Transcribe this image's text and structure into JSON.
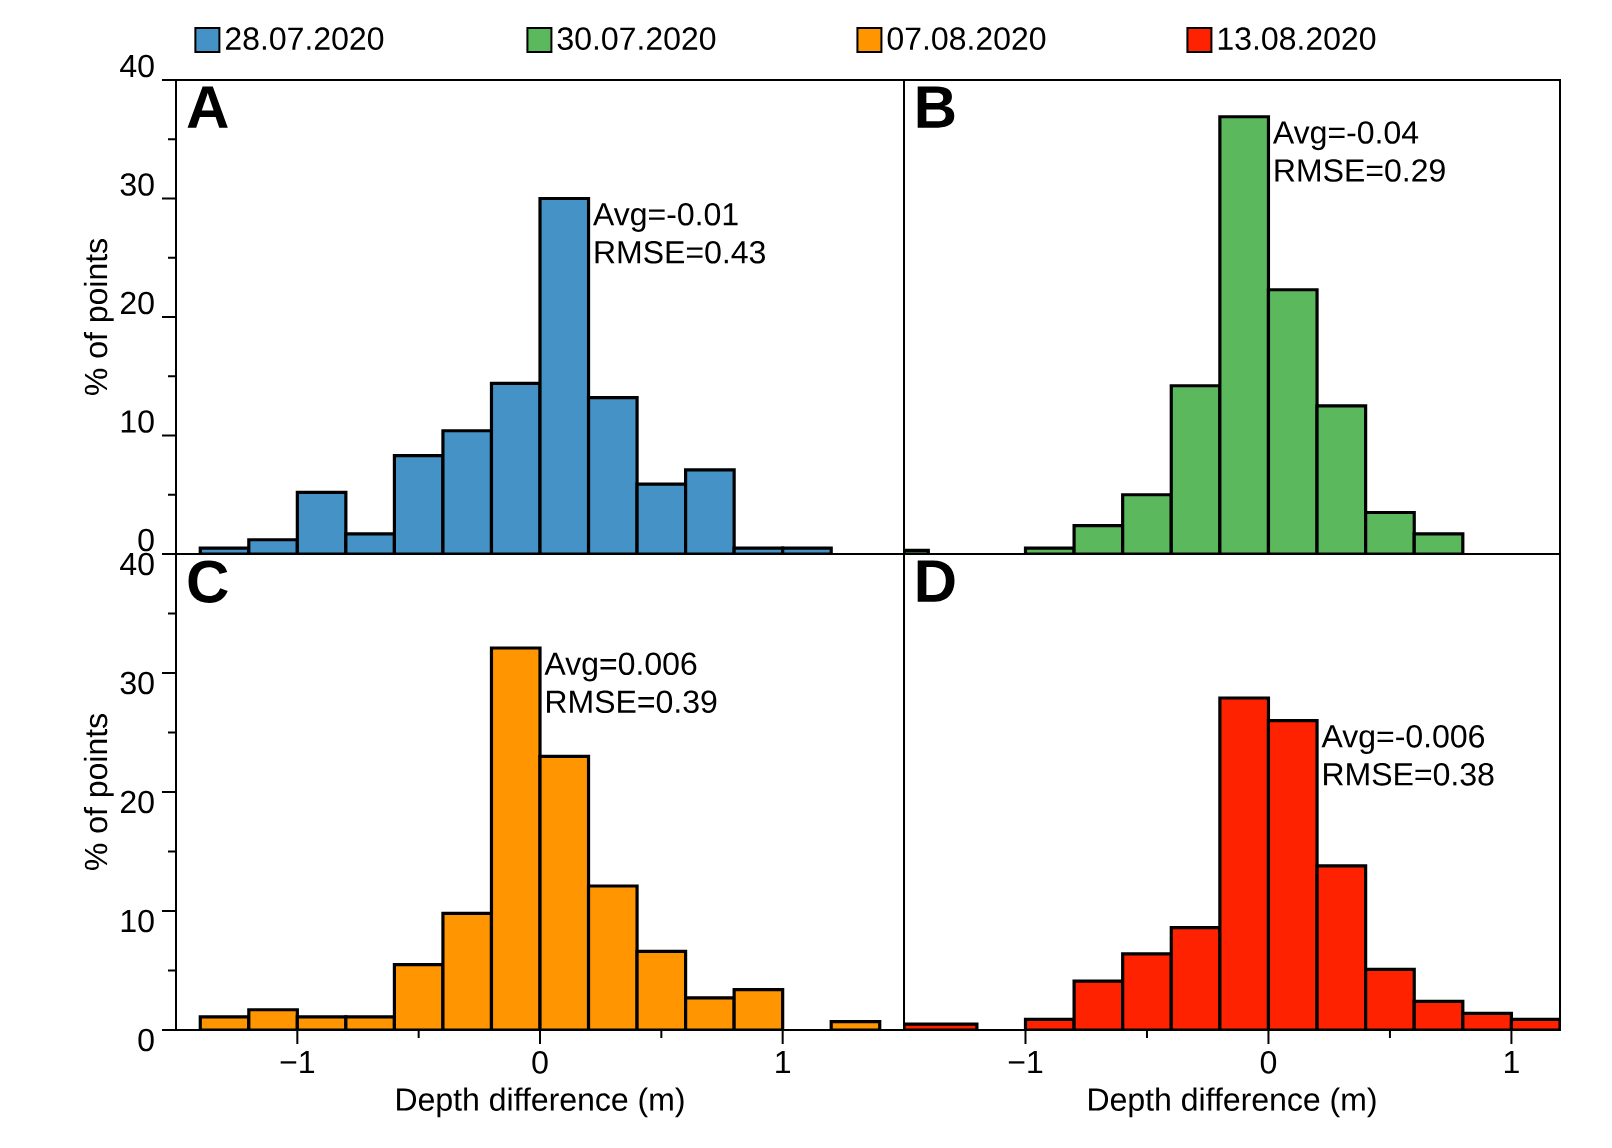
{
  "chart_data": [
    {
      "type": "histogram",
      "title": "A",
      "ylabel": "% of points",
      "xlim": [
        -1.5,
        1.5
      ],
      "ylim": [
        0,
        40
      ],
      "yticks": [
        0,
        {
          "value": 5,
          "label": null
        },
        10,
        {
          "value": 15,
          "label": null
        },
        20,
        {
          "value": 25,
          "label": null
        },
        30,
        {
          "value": 35,
          "label": null
        },
        40
      ],
      "tick_labels": "y",
      "legend": "top",
      "bins": [
        -1.4,
        -1.2,
        -1.0,
        -0.8,
        -0.6,
        -0.4,
        -0.2,
        0,
        0.2,
        0.4,
        0.6,
        0.8,
        1.0,
        1.2
      ],
      "series": [
        {
          "name": "28.07.2020",
          "color": "#4592c6",
          "values": [
            0.5,
            1.2,
            5.2,
            1.7,
            8.3,
            10.4,
            14.4,
            30,
            13.2,
            5.9,
            7.1,
            0.5,
            0.5
          ]
        }
      ],
      "annotations": [
        "Avg=-0.01",
        "RMSE=0.43"
      ]
    },
    {
      "type": "histogram",
      "title": "B",
      "xlim": [
        -1.5,
        1.2
      ],
      "ylim": [
        0,
        40
      ],
      "tick_labels": false,
      "legend": "top",
      "bins": [
        -1.5,
        -1.4,
        -1.0,
        -0.8,
        -0.6,
        -0.4,
        -0.2,
        0,
        0.2,
        0.4,
        0.6,
        0.8
      ],
      "series": [
        {
          "name": "30.07.2020",
          "color": "#5cb85c",
          "values": [
            0.3,
            null,
            0.5,
            2.4,
            5.0,
            14.2,
            36.9,
            22.3,
            12.5,
            3.5,
            1.7
          ]
        }
      ],
      "annotations": [
        "Avg=-0.04",
        "RMSE=0.29"
      ]
    },
    {
      "type": "histogram",
      "title": "C",
      "xlabel": "Depth difference (m)",
      "ylabel": "% of points",
      "xlim": [
        -1.5,
        1.5
      ],
      "ylim": [
        0,
        40
      ],
      "xticks": [
        {
          "value": -1,
          "label": "−1"
        },
        {
          "value": -0.5,
          "label": null
        },
        0,
        {
          "value": 0.5,
          "label": null
        },
        1
      ],
      "yticks": [
        0,
        {
          "value": 5,
          "label": null
        },
        10,
        {
          "value": 15,
          "label": null
        },
        20,
        {
          "value": 25,
          "label": null
        },
        30,
        {
          "value": 35,
          "label": null
        },
        40
      ],
      "legend": "top",
      "bins": [
        -1.4,
        -1.2,
        -1.0,
        -0.8,
        -0.6,
        -0.4,
        -0.2,
        0,
        0.2,
        0.4,
        0.6,
        0.8,
        1.0,
        1.2,
        1.4
      ],
      "series": [
        {
          "name": "07.08.2020",
          "color": "#ff9500",
          "values": [
            1.1,
            1.7,
            1.1,
            1.1,
            5.5,
            9.8,
            32.1,
            23.0,
            12.1,
            6.6,
            2.7,
            3.4,
            null,
            0.7
          ]
        }
      ],
      "annotations": [
        "Avg=0.006",
        "RMSE=0.39"
      ]
    },
    {
      "type": "histogram",
      "title": "D",
      "xlabel": "Depth difference (m)",
      "xlim": [
        -1.5,
        1.2
      ],
      "ylim": [
        0,
        40
      ],
      "xticks": [
        {
          "value": -1,
          "label": "−1"
        },
        {
          "value": -0.5,
          "label": null
        },
        0,
        {
          "value": 0.5,
          "label": null
        },
        1
      ],
      "tick_labels": "x",
      "legend": "top",
      "bins": [
        -1.5,
        -1.2,
        -1.0,
        -0.8,
        -0.6,
        -0.4,
        -0.2,
        0,
        0.2,
        0.4,
        0.6,
        0.8,
        1.0,
        1.2
      ],
      "series": [
        {
          "name": "13.08.2020",
          "color": "#ff2200",
          "values": [
            0.5,
            null,
            0.9,
            4.1,
            6.4,
            8.6,
            27.9,
            26.0,
            13.8,
            5.1,
            2.4,
            1.4,
            0.9
          ]
        }
      ],
      "annotations": [
        "Avg=-0.006",
        "RMSE=0.38"
      ]
    }
  ]
}
